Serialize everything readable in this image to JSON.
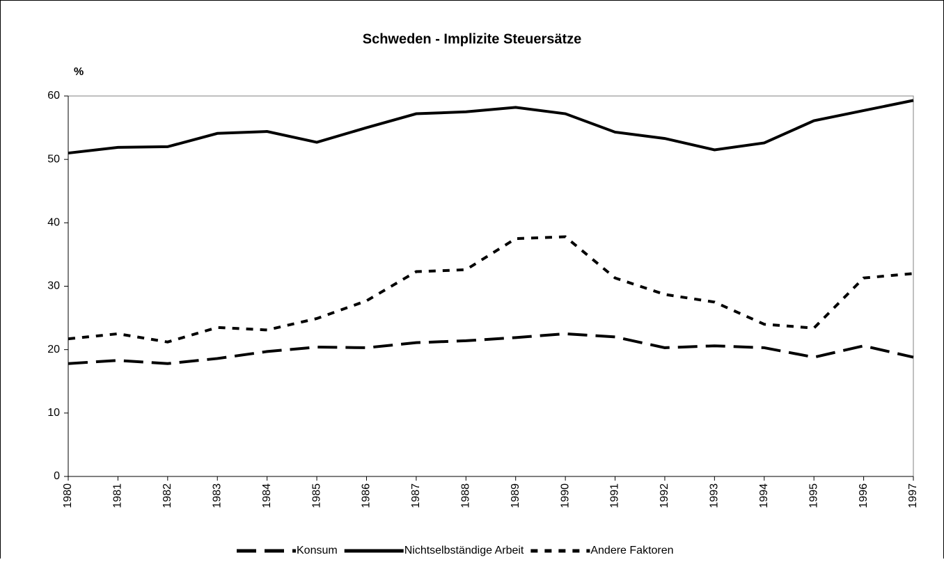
{
  "chart_data": {
    "type": "line",
    "title": "Schweden - Implizite Steuersätze",
    "y_label": "%",
    "categories": [
      "1980",
      "1981",
      "1982",
      "1983",
      "1984",
      "1985",
      "1986",
      "1987",
      "1988",
      "1989",
      "1990",
      "1991",
      "1992",
      "1993",
      "1994",
      "1995",
      "1996",
      "1997"
    ],
    "series": [
      {
        "name": "Konsum",
        "color": "#000000",
        "line_style": "long-dash",
        "values": [
          17.8,
          18.3,
          17.8,
          18.6,
          19.7,
          20.4,
          20.3,
          21.1,
          21.4,
          21.9,
          22.5,
          22.0,
          20.3,
          20.6,
          20.3,
          18.8,
          20.6,
          18.8
        ]
      },
      {
        "name": "Nichtselbständige Arbeit",
        "color": "#000000",
        "line_style": "solid",
        "values": [
          51.0,
          51.9,
          52.0,
          54.1,
          54.4,
          52.7,
          55.0,
          57.2,
          57.5,
          58.2,
          57.2,
          54.3,
          53.3,
          51.5,
          52.6,
          56.1,
          57.7,
          59.3
        ]
      },
      {
        "name": "Andere Faktoren",
        "color": "#000000",
        "line_style": "short-dash",
        "values": [
          21.7,
          22.5,
          21.2,
          23.5,
          23.1,
          24.9,
          27.7,
          32.3,
          32.6,
          37.5,
          37.8,
          31.3,
          28.7,
          27.5,
          24.0,
          23.4,
          31.3,
          32.0
        ]
      }
    ],
    "ylim": [
      0,
      60
    ],
    "yticks": [
      0,
      10,
      20,
      30,
      40,
      50,
      60
    ],
    "grid": false,
    "legend": "bottom"
  }
}
